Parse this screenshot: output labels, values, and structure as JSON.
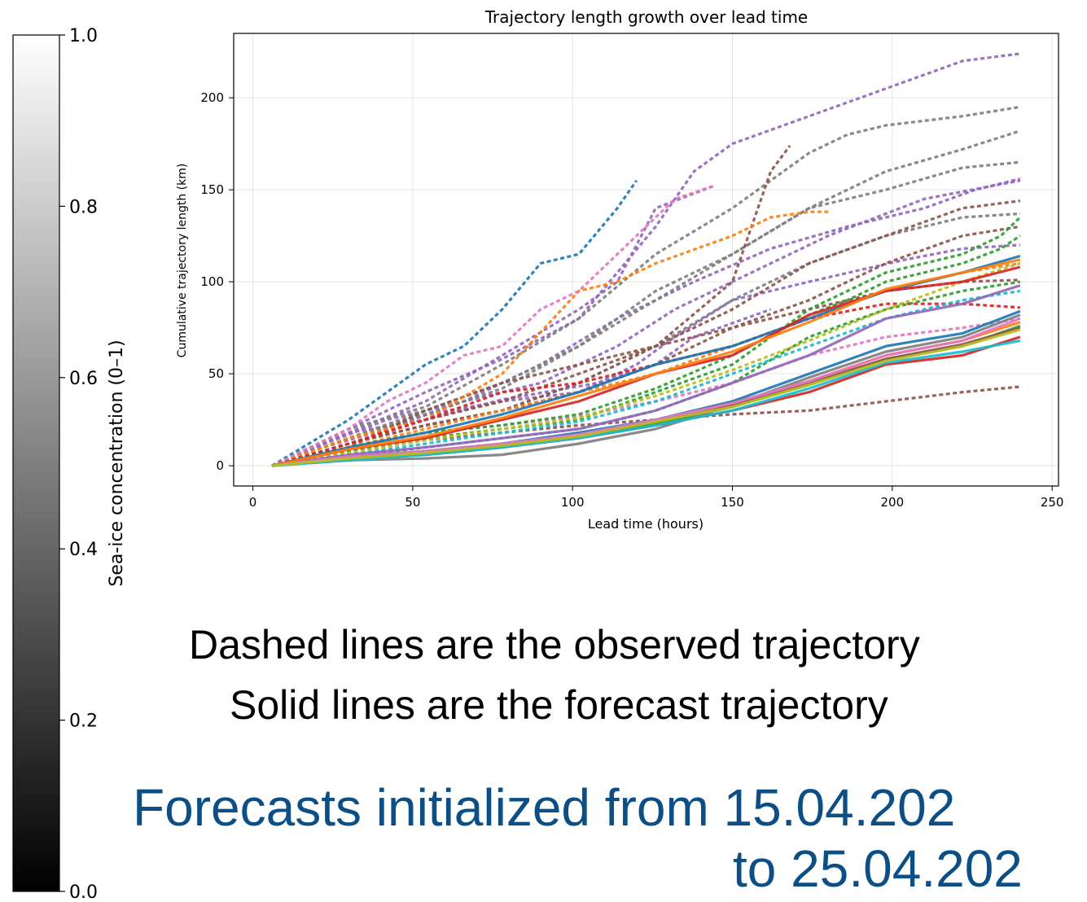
{
  "colorbar": {
    "label": "Sea-ice concentration (0–1)",
    "ticks": [
      "0.0",
      "0.2",
      "0.4",
      "0.6",
      "0.8",
      "1.0"
    ],
    "tick_values": [
      0.0,
      0.2,
      0.4,
      0.6,
      0.8,
      1.0
    ],
    "range": [
      0.0,
      1.0
    ],
    "colormap": "gray",
    "color_low": "#000000",
    "color_high": "#ffffff"
  },
  "captions": {
    "dashed": "Dashed lines are the observed trajectory",
    "solid": "Solid lines are the forecast trajectory",
    "range_line1": "Forecasts initialized from  15.04.202",
    "range_line2": "to  25.04.202"
  },
  "chart_data": {
    "type": "line",
    "title": "Trajectory length growth over lead time",
    "xlabel": "Lead time (hours)",
    "ylabel": "Cumulative trajectory length (km)",
    "xlim": [
      -6,
      252
    ],
    "ylim": [
      -11,
      235
    ],
    "xticks": [
      0,
      50,
      100,
      150,
      200,
      250
    ],
    "yticks": [
      0,
      50,
      100,
      150,
      200
    ],
    "grid": true,
    "legend": "none",
    "series": [
      {
        "style": "dashed",
        "color": "#9467bd",
        "x": [
          6,
          18,
          42,
          66,
          90,
          114,
          138,
          162,
          186,
          210,
          226,
          240
        ],
        "y": [
          0,
          8,
          20,
          35,
          55,
          80,
          100,
          118,
          130,
          140,
          150,
          156
        ]
      },
      {
        "style": "dashed",
        "color": "#9467bd",
        "x": [
          6,
          18,
          42,
          66,
          90,
          114,
          132,
          150,
          180,
          210,
          225,
          240
        ],
        "y": [
          0,
          9,
          25,
          35,
          45,
          65,
          85,
          100,
          125,
          145,
          150,
          155
        ]
      },
      {
        "style": "dashed",
        "color": "#9467bd",
        "x": [
          6,
          30,
          54,
          78,
          102,
          120,
          132,
          150,
          174,
          204,
          222,
          240
        ],
        "y": [
          0,
          15,
          28,
          35,
          40,
          55,
          70,
          90,
          100,
          112,
          118,
          120
        ]
      },
      {
        "style": "dashed",
        "color": "#9467bd",
        "x": [
          6,
          30,
          54,
          78,
          108,
          126,
          138,
          162
        ],
        "y": [
          0,
          18,
          25,
          36,
          45,
          55,
          70,
          85
        ]
      },
      {
        "style": "dashed",
        "color": "#9467bd",
        "x": [
          6,
          30,
          54,
          78,
          102,
          114,
          126,
          144
        ],
        "y": [
          0,
          18,
          35,
          60,
          85,
          100,
          140,
          152
        ]
      },
      {
        "style": "dashed",
        "color": "#9467bd",
        "x": [
          6,
          30,
          54,
          78,
          102,
          126,
          138,
          150,
          174,
          198,
          222,
          240
        ],
        "y": [
          0,
          20,
          40,
          58,
          80,
          130,
          160,
          175,
          190,
          205,
          220,
          224
        ]
      },
      {
        "style": "dashed",
        "color": "#7f7f7f",
        "x": [
          6,
          30,
          54,
          78,
          102,
          126,
          150,
          174,
          198,
          222,
          240
        ],
        "y": [
          0,
          15,
          30,
          45,
          65,
          90,
          115,
          140,
          160,
          172,
          182
        ]
      },
      {
        "style": "dashed",
        "color": "#7f7f7f",
        "x": [
          6,
          30,
          54,
          78,
          102,
          126,
          150,
          174,
          186,
          198,
          222,
          240
        ],
        "y": [
          0,
          20,
          32,
          55,
          80,
          115,
          140,
          170,
          180,
          185,
          190,
          195
        ]
      },
      {
        "style": "dashed",
        "color": "#7f7f7f",
        "x": [
          6,
          30,
          54,
          78,
          102,
          126,
          150,
          174,
          198,
          222,
          240
        ],
        "y": [
          0,
          15,
          28,
          42,
          65,
          95,
          115,
          140,
          150,
          162,
          165
        ]
      },
      {
        "style": "dashed",
        "color": "#7f7f7f",
        "x": [
          6,
          30,
          54,
          78,
          102,
          126,
          150,
          174,
          198,
          222,
          240
        ],
        "y": [
          0,
          12,
          22,
          30,
          45,
          65,
          90,
          110,
          125,
          135,
          137
        ]
      },
      {
        "style": "dashed",
        "color": "#8c564b",
        "x": [
          6,
          30,
          54,
          78,
          102,
          126,
          150,
          162,
          168
        ],
        "y": [
          0,
          12,
          22,
          30,
          45,
          65,
          100,
          160,
          174
        ]
      },
      {
        "style": "dashed",
        "color": "#8c564b",
        "x": [
          6,
          30,
          54,
          78,
          102,
          126,
          150,
          174,
          198,
          222,
          240
        ],
        "y": [
          0,
          12,
          25,
          35,
          50,
          65,
          85,
          110,
          125,
          140,
          144
        ]
      },
      {
        "style": "dashed",
        "color": "#8c564b",
        "x": [
          6,
          30,
          54,
          78,
          102,
          126,
          150,
          174,
          198,
          222,
          240
        ],
        "y": [
          0,
          12,
          22,
          30,
          40,
          55,
          75,
          90,
          110,
          125,
          130
        ]
      },
      {
        "style": "dashed",
        "color": "#8c564b",
        "x": [
          6,
          30,
          54,
          78,
          102,
          126,
          150,
          174,
          198,
          222,
          240
        ],
        "y": [
          0,
          8,
          14,
          18,
          22,
          25,
          28,
          30,
          35,
          40,
          43
        ]
      },
      {
        "style": "dashed",
        "color": "#8c564b",
        "x": [
          6,
          30,
          54,
          78,
          102,
          126,
          150,
          174,
          198,
          222,
          240
        ],
        "y": [
          0,
          10,
          30,
          45,
          55,
          65,
          75,
          85,
          95,
          100,
          101
        ]
      },
      {
        "style": "dashed",
        "color": "#1f77b4",
        "x": [
          6,
          30,
          54,
          66,
          78,
          90,
          102,
          114,
          120
        ],
        "y": [
          0,
          25,
          55,
          65,
          85,
          110,
          115,
          140,
          155
        ]
      },
      {
        "style": "dashed",
        "color": "#ff7f0e",
        "x": [
          6,
          30,
          54,
          78,
          102,
          114,
          126,
          150,
          162,
          174,
          180
        ],
        "y": [
          0,
          15,
          25,
          50,
          95,
          100,
          110,
          125,
          135,
          138,
          138
        ]
      },
      {
        "style": "dashed",
        "color": "#ff7f0e",
        "x": [
          6,
          30,
          54,
          78,
          102,
          126,
          150,
          174,
          198,
          222,
          240
        ],
        "y": [
          0,
          10,
          20,
          30,
          40,
          50,
          65,
          80,
          95,
          105,
          110
        ]
      },
      {
        "style": "dashed",
        "color": "#e377c2",
        "x": [
          6,
          30,
          42,
          54,
          66,
          78,
          90,
          102,
          114,
          132,
          144
        ],
        "y": [
          0,
          20,
          35,
          45,
          60,
          65,
          85,
          95,
          115,
          145,
          152
        ]
      },
      {
        "style": "dashed",
        "color": "#e377c2",
        "x": [
          6,
          30,
          54,
          78,
          102,
          126,
          150,
          174,
          198,
          222,
          240
        ],
        "y": [
          0,
          10,
          18,
          22,
          27,
          35,
          45,
          60,
          70,
          75,
          80
        ]
      },
      {
        "style": "dashed",
        "color": "#d62728",
        "x": [
          6,
          30,
          54,
          78,
          102,
          126,
          150,
          174,
          198,
          222,
          240
        ],
        "y": [
          0,
          12,
          25,
          40,
          45,
          55,
          65,
          80,
          88,
          88,
          86
        ]
      },
      {
        "style": "dashed",
        "color": "#2ca02c",
        "x": [
          6,
          30,
          54,
          78,
          102,
          126,
          150,
          174,
          186,
          198,
          210,
          222,
          234,
          240
        ],
        "y": [
          0,
          8,
          15,
          20,
          25,
          40,
          55,
          85,
          95,
          105,
          110,
          115,
          125,
          135
        ]
      },
      {
        "style": "dashed",
        "color": "#2ca02c",
        "x": [
          6,
          30,
          54,
          78,
          102,
          126,
          150,
          174,
          186,
          198,
          210,
          222,
          234,
          240
        ],
        "y": [
          0,
          10,
          18,
          22,
          28,
          42,
          60,
          82,
          90,
          100,
          105,
          110,
          118,
          125
        ]
      },
      {
        "style": "dashed",
        "color": "#2ca02c",
        "x": [
          6,
          30,
          54,
          78,
          102,
          126,
          150,
          174,
          198,
          222,
          240
        ],
        "y": [
          0,
          5,
          10,
          15,
          20,
          30,
          45,
          70,
          85,
          95,
          100
        ]
      },
      {
        "style": "dashed",
        "color": "#17becf",
        "x": [
          6,
          30,
          54,
          78,
          102,
          126,
          150,
          174,
          198,
          222,
          240
        ],
        "y": [
          0,
          6,
          12,
          18,
          24,
          35,
          50,
          65,
          80,
          90,
          95
        ]
      },
      {
        "style": "dashed",
        "color": "#bcbd22",
        "x": [
          6,
          30,
          54,
          78,
          102,
          126,
          150,
          174,
          198,
          222,
          240
        ],
        "y": [
          0,
          7,
          14,
          20,
          26,
          38,
          52,
          68,
          85,
          100,
          110
        ]
      },
      {
        "style": "solid",
        "color": "#1f77b4",
        "x": [
          6,
          30,
          54,
          78,
          102,
          126,
          150,
          174,
          198,
          222,
          240
        ],
        "y": [
          0,
          10,
          18,
          28,
          40,
          55,
          65,
          80,
          95,
          105,
          114
        ]
      },
      {
        "style": "solid",
        "color": "#1f77b4",
        "x": [
          6,
          30,
          54,
          78,
          102,
          126,
          150,
          174,
          198,
          222,
          240
        ],
        "y": [
          0,
          5,
          8,
          12,
          18,
          25,
          35,
          50,
          65,
          72,
          84
        ]
      },
      {
        "style": "solid",
        "color": "#d62728",
        "x": [
          6,
          30,
          54,
          78,
          102,
          126,
          150,
          174,
          198,
          222,
          240
        ],
        "y": [
          0,
          9,
          15,
          25,
          35,
          50,
          60,
          82,
          95,
          100,
          108
        ]
      },
      {
        "style": "solid",
        "color": "#d62728",
        "x": [
          6,
          30,
          54,
          78,
          102,
          126,
          150,
          174,
          198,
          222,
          240
        ],
        "y": [
          0,
          4,
          6,
          10,
          15,
          22,
          30,
          40,
          55,
          60,
          70
        ]
      },
      {
        "style": "solid",
        "color": "#9467bd",
        "x": [
          6,
          30,
          54,
          78,
          102,
          126,
          150,
          174,
          198,
          222,
          240
        ],
        "y": [
          0,
          6,
          10,
          15,
          20,
          30,
          45,
          60,
          80,
          88,
          98
        ]
      },
      {
        "style": "solid",
        "color": "#ff7f0e",
        "x": [
          6,
          30,
          54,
          78,
          102,
          126,
          150,
          174,
          198,
          222,
          240
        ],
        "y": [
          0,
          9,
          16,
          26,
          38,
          50,
          62,
          78,
          96,
          105,
          112
        ]
      },
      {
        "style": "solid",
        "color": "#ff7f0e",
        "x": [
          6,
          30,
          54,
          78,
          102,
          126,
          150,
          174,
          198,
          222,
          240
        ],
        "y": [
          0,
          4,
          7,
          11,
          16,
          24,
          34,
          46,
          60,
          68,
          78
        ]
      },
      {
        "style": "solid",
        "color": "#2ca02c",
        "x": [
          6,
          30,
          54,
          78,
          102,
          126,
          150,
          174,
          198,
          222,
          240
        ],
        "y": [
          0,
          4,
          6,
          10,
          16,
          23,
          32,
          44,
          58,
          65,
          76
        ]
      },
      {
        "style": "solid",
        "color": "#7f7f7f",
        "x": [
          6,
          30,
          54,
          78,
          102,
          126,
          150,
          174,
          198,
          222,
          240
        ],
        "y": [
          0,
          3,
          4,
          6,
          12,
          20,
          33,
          48,
          62,
          70,
          82
        ]
      },
      {
        "style": "solid",
        "color": "#8c564b",
        "x": [
          6,
          30,
          54,
          78,
          102,
          126,
          150,
          174,
          198,
          222,
          240
        ],
        "y": [
          0,
          4,
          7,
          11,
          16,
          24,
          33,
          45,
          58,
          66,
          75
        ]
      },
      {
        "style": "solid",
        "color": "#e377c2",
        "x": [
          6,
          30,
          54,
          78,
          102,
          126,
          150,
          174,
          198,
          222,
          240
        ],
        "y": [
          0,
          5,
          8,
          12,
          17,
          25,
          34,
          46,
          60,
          68,
          80
        ]
      },
      {
        "style": "solid",
        "color": "#17becf",
        "x": [
          6,
          30,
          54,
          78,
          102,
          126,
          150,
          174,
          198,
          222,
          240
        ],
        "y": [
          0,
          3,
          6,
          10,
          15,
          22,
          30,
          42,
          56,
          62,
          68
        ]
      },
      {
        "style": "solid",
        "color": "#bcbd22",
        "x": [
          6,
          30,
          54,
          78,
          102,
          126,
          150,
          174,
          198,
          222,
          240
        ],
        "y": [
          0,
          4,
          7,
          11,
          16,
          24,
          32,
          44,
          57,
          65,
          74
        ]
      }
    ]
  }
}
